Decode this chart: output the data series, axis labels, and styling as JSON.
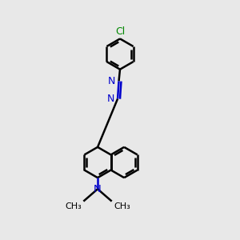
{
  "background_color": "#e8e8e8",
  "bond_color": "#000000",
  "nitrogen_color": "#0000cc",
  "chlorine_color": "#008800",
  "bond_width": 1.8,
  "figsize": [
    3.0,
    3.0
  ],
  "dpi": 100,
  "xlim": [
    0,
    10
  ],
  "ylim": [
    0,
    10
  ]
}
